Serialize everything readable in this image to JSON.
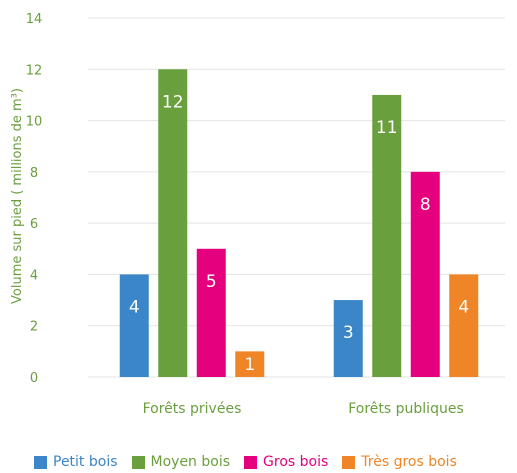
{
  "chart_data": {
    "type": "bar",
    "categories": [
      "Forêts privées",
      "Forêts publiques"
    ],
    "series": [
      {
        "name": "Petit bois",
        "color": "#3b86c8",
        "values": [
          4,
          3
        ]
      },
      {
        "name": "Moyen bois",
        "color": "#6a9f3e",
        "values": [
          12,
          11
        ]
      },
      {
        "name": "Gros bois",
        "color": "#e5007e",
        "values": [
          5,
          8
        ]
      },
      {
        "name": "Très gros bois",
        "color": "#ef8526",
        "values": [
          1,
          4
        ]
      }
    ],
    "ylabel": "Volume sur pied ( millions de m³)",
    "ylim": [
      0,
      14
    ],
    "yticks": [
      0,
      2,
      4,
      6,
      8,
      10,
      12,
      14
    ],
    "grid": true,
    "legend_position": "bottom",
    "data_labels": true,
    "colors": {
      "axis_text": "#6a9f3e",
      "grid": "#e3e3e3",
      "label_text": "#ffffff"
    }
  }
}
